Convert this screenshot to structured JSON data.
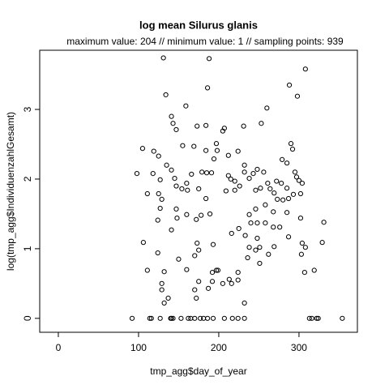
{
  "chart_data": {
    "type": "scatter",
    "title": "log mean Silurus glanis",
    "subtitle": "maximum value: 204  //  minimum value: 1  // sampling points: 939",
    "xlabel": "tmp_agg$day_of_year",
    "ylabel": "log(tmp_agg$IndividuenzahlGesamt)",
    "color": "#000000",
    "x": [
      92,
      114,
      116,
      127,
      140,
      141,
      143,
      153,
      162,
      165,
      170,
      177,
      181,
      186,
      193,
      207,
      217,
      224,
      232,
      313,
      316,
      322,
      324,
      354,
      131,
      188,
      308,
      288,
      186,
      298,
      134,
      159,
      260,
      141,
      173,
      184,
      205,
      207,
      143,
      147,
      253,
      231,
      290,
      292,
      197,
      169,
      155,
      184,
      105,
      119,
      125,
      198,
      212,
      224,
      194,
      135,
      285,
      279,
      232,
      98,
      118,
      179,
      185,
      191,
      141,
      145,
      147,
      127,
      160,
      166,
      212,
      215,
      220,
      226,
      232,
      238,
      243,
      248,
      256,
      261,
      272,
      278,
      285,
      295,
      297,
      300,
      304,
      125,
      111,
      129,
      154,
      161,
      175,
      184,
      209,
      220,
      246,
      252,
      264,
      269,
      273,
      280,
      287,
      293,
      302,
      127,
      147,
      160,
      148,
      124,
      178,
      189,
      238,
      246,
      258,
      268,
      285,
      302,
      240,
      248,
      258,
      268,
      276,
      331,
      172,
      141,
      225,
      216,
      233,
      248,
      287,
      304,
      106,
      173,
      193,
      238,
      251,
      329,
      175,
      246,
      269,
      124,
      170,
      262,
      236,
      251,
      303,
      308,
      150,
      111,
      132,
      160,
      192,
      197,
      199,
      224,
      319,
      307,
      192,
      205,
      213,
      224,
      187,
      129,
      170,
      137,
      172,
      132,
      232,
      216,
      175,
      129
    ],
    "values": [
      0,
      0,
      0,
      0,
      0,
      0,
      0,
      0,
      0,
      0,
      0,
      0,
      0,
      0,
      0,
      0,
      0,
      0,
      0,
      0,
      0,
      0,
      0,
      0,
      3.74,
      3.73,
      3.58,
      3.35,
      3.31,
      3.19,
      3.21,
      3.05,
      3.02,
      2.9,
      2.76,
      2.77,
      2.69,
      2.73,
      2.8,
      2.71,
      2.8,
      2.76,
      2.51,
      2.43,
      2.51,
      2.47,
      2.48,
      2.41,
      2.44,
      2.4,
      2.33,
      2.41,
      2.34,
      2.4,
      2.29,
      2.2,
      2.23,
      2.28,
      2.2,
      2.08,
      2.08,
      2.1,
      2.09,
      2.09,
      2.13,
      2.01,
      1.9,
      1.99,
      1.94,
      2.07,
      2.05,
      2.0,
      1.97,
      1.9,
      2.1,
      2.01,
      2.08,
      2.14,
      2.1,
      1.94,
      1.97,
      1.94,
      1.87,
      2.1,
      2.03,
      1.98,
      1.94,
      1.79,
      1.79,
      1.71,
      1.86,
      1.84,
      1.86,
      1.72,
      1.83,
      1.84,
      1.84,
      1.87,
      1.86,
      1.8,
      1.71,
      1.7,
      1.72,
      1.78,
      1.79,
      1.58,
      1.57,
      1.49,
      1.44,
      1.41,
      1.48,
      1.5,
      1.49,
      1.57,
      1.63,
      1.53,
      1.52,
      1.44,
      1.37,
      1.37,
      1.37,
      1.31,
      1.31,
      1.38,
      1.42,
      1.27,
      1.29,
      1.22,
      1.19,
      1.15,
      1.17,
      1.08,
      1.09,
      1.08,
      1.06,
      1.02,
      1.02,
      1.09,
      0.98,
      0.98,
      1.03,
      0.94,
      0.9,
      0.92,
      0.87,
      0.79,
      0.92,
      1.02,
      0.85,
      0.69,
      0.67,
      0.7,
      0.66,
      0.69,
      0.69,
      0.66,
      0.69,
      0.66,
      0.53,
      0.5,
      0.56,
      0.55,
      0.43,
      0.41,
      0.41,
      0.29,
      0.29,
      0.22,
      0.22,
      0.5,
      0.53,
      0.5
    ],
    "xlim": [
      -23.2,
      372.8
    ],
    "ylim": [
      -0.2,
      3.85
    ],
    "xticks": [
      0,
      100,
      200,
      300
    ],
    "yticks": [
      0,
      1,
      2,
      3
    ],
    "grid": false
  }
}
